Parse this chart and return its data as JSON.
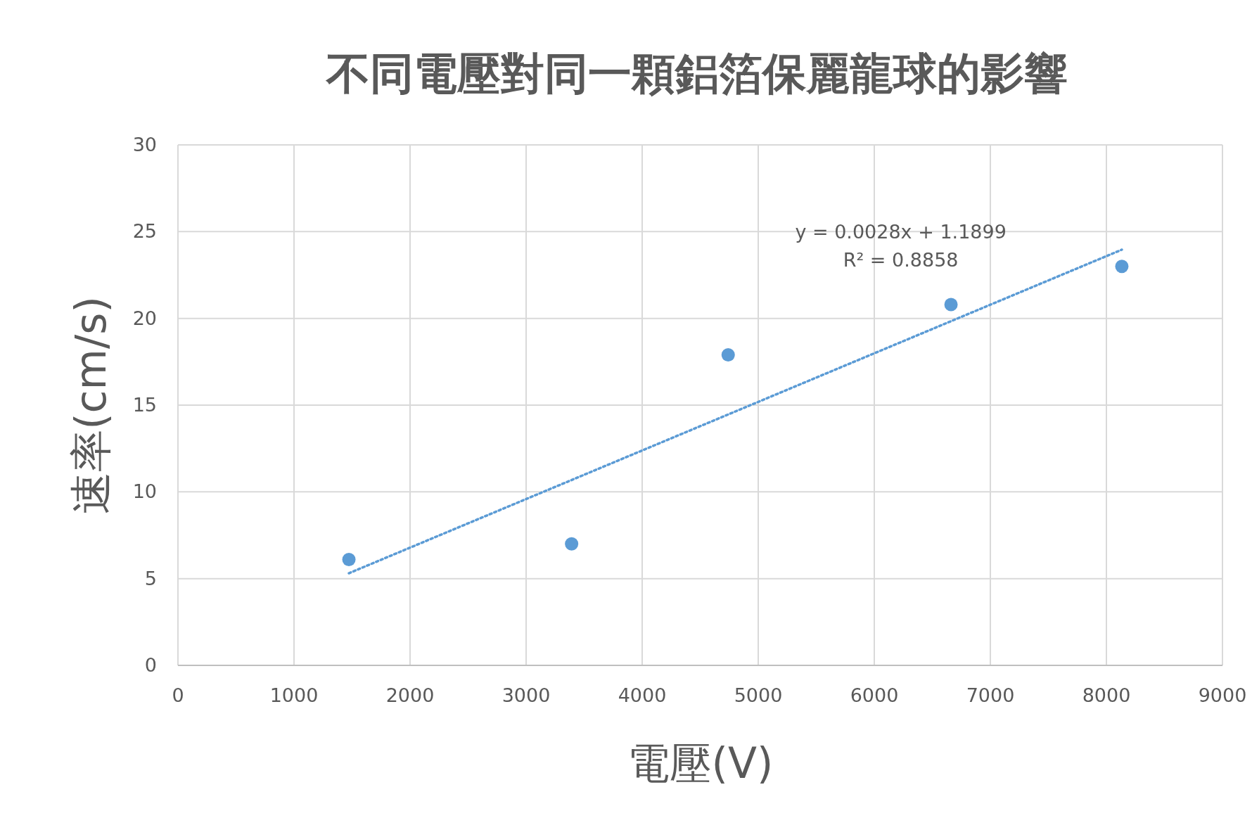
{
  "chart_data": {
    "type": "scatter",
    "title": "不同電壓對同一顆鋁箔保麗龍球的影響",
    "xlabel": "電壓(V)",
    "ylabel": "速率(cm/s)",
    "xlim": [
      0,
      9000
    ],
    "xticks": [
      0,
      1000,
      2000,
      3000,
      4000,
      5000,
      6000,
      7000,
      8000,
      9000
    ],
    "ylim": [
      0,
      30
    ],
    "yticks": [
      0,
      5,
      10,
      15,
      20,
      25,
      30
    ],
    "grid": true,
    "series": [
      {
        "color": "#5b9bd5",
        "marker": "circle",
        "x": [
          1473,
          3392,
          4741,
          6661,
          8133
        ],
        "values": [
          6.1,
          7.0,
          17.9,
          20.8,
          23.0
        ]
      },
      {
        "type": "line",
        "color": "#5b9bd5",
        "line_style": "dotted",
        "marker": "none",
        "x": [
          1473,
          8133
        ],
        "values": [
          5.31,
          23.96
        ]
      }
    ],
    "annotations": [
      "y = 0.0028x + 1.1899",
      "R² = 0.8858"
    ]
  }
}
